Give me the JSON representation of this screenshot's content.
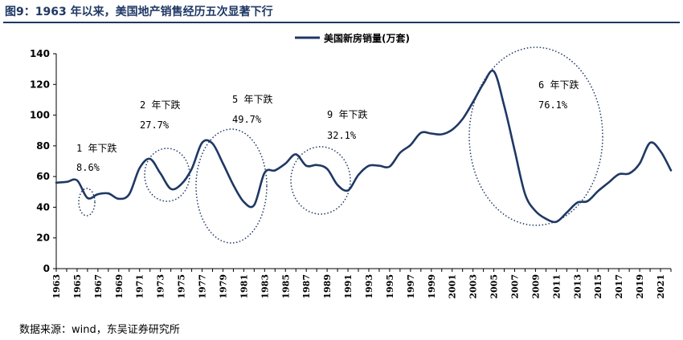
{
  "header": {
    "figure_title": "图9：1963 年以来，美国地产销售经历五次显著下行"
  },
  "footer": {
    "source": "数据来源：wind，东吴证券研究所"
  },
  "colors": {
    "series": "#1f3864",
    "title": "#1f3864",
    "ellipse": "#1f3864"
  },
  "chart_data": {
    "type": "line",
    "title": "",
    "xlabel": "",
    "ylabel": "",
    "ylim": [
      0,
      140
    ],
    "yticks": [
      "0",
      "20",
      "40",
      "60",
      "80",
      "100",
      "120",
      "140"
    ],
    "xlim": [
      1963,
      2022
    ],
    "xticks": [
      "1963",
      "1965",
      "1967",
      "1969",
      "1971",
      "1973",
      "1975",
      "1977",
      "1979",
      "1981",
      "1983",
      "1985",
      "1987",
      "1989",
      "1991",
      "1993",
      "1995",
      "1997",
      "1999",
      "2001",
      "2003",
      "2005",
      "2007",
      "2009",
      "2011",
      "2013",
      "2015",
      "2017",
      "2019",
      "2021"
    ],
    "legend": {
      "position": "top-center",
      "entries": [
        "美国新房销量(万套)"
      ]
    },
    "series": [
      {
        "name": "美国新房销量(万套)",
        "x": [
          1963,
          1964,
          1965,
          1966,
          1967,
          1968,
          1969,
          1970,
          1971,
          1972,
          1973,
          1974,
          1975,
          1976,
          1977,
          1978,
          1979,
          1980,
          1981,
          1982,
          1983,
          1984,
          1985,
          1986,
          1987,
          1988,
          1989,
          1990,
          1991,
          1992,
          1993,
          1994,
          1995,
          1996,
          1997,
          1998,
          1999,
          2000,
          2001,
          2002,
          2003,
          2004,
          2005,
          2006,
          2007,
          2008,
          2009,
          2010,
          2011,
          2012,
          2013,
          2014,
          2015,
          2016,
          2017,
          2018,
          2019,
          2020,
          2021,
          2022
        ],
        "values": [
          56,
          56.5,
          57.5,
          46,
          48.5,
          49,
          45.5,
          48.5,
          65.5,
          71.5,
          62,
          52,
          55,
          65,
          82,
          81.5,
          68.5,
          54.5,
          43.5,
          41.5,
          62.5,
          64,
          68.5,
          74.5,
          67,
          67.5,
          65,
          54.5,
          51,
          61,
          67,
          67,
          66.5,
          75.5,
          80.5,
          88.5,
          88,
          87.5,
          90.5,
          97.5,
          108.5,
          120.5,
          128.5,
          106,
          77,
          48.5,
          37.5,
          32.5,
          30.5,
          36.5,
          43,
          44,
          50.5,
          56,
          61.5,
          62,
          68.5,
          82,
          76.5,
          64
        ]
      }
    ],
    "annotations": [
      {
        "label": "1 年下跌",
        "pct": "8.6%"
      },
      {
        "label": "2 年下跌",
        "pct": "27.7%"
      },
      {
        "label": "5 年下跌",
        "pct": "49.7%"
      },
      {
        "label": "9 年下跌",
        "pct": "32.1%"
      },
      {
        "label": "6 年下跌",
        "pct": "76.1%"
      }
    ]
  }
}
